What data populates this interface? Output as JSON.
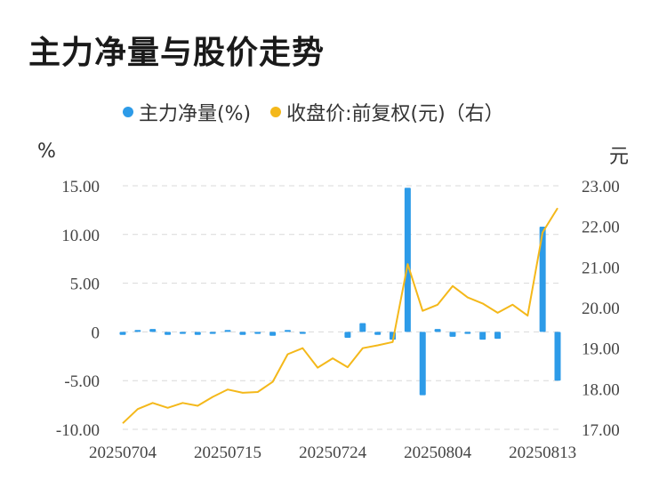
{
  "title": "主力净量与股价走势",
  "legend": {
    "net": "主力净量(%)",
    "price": "收盘价:前复权(元)（右）"
  },
  "units": {
    "left": "%",
    "right": "元"
  },
  "colors": {
    "bar": "#2d9be8",
    "line": "#f4b81a",
    "grid": "#d9d9d9"
  },
  "chart_data": {
    "type": "bar+line",
    "x": [
      "20250704",
      "20250707",
      "20250708",
      "20250709",
      "20250710",
      "20250711",
      "20250714",
      "20250715",
      "20250716",
      "20250717",
      "20250718",
      "20250721",
      "20250722",
      "20250723",
      "20250724",
      "20250725",
      "20250728",
      "20250729",
      "20250730",
      "20250731",
      "20250801",
      "20250804",
      "20250805",
      "20250806",
      "20250807",
      "20250808",
      "20250811",
      "20250812",
      "20250813",
      "20250814"
    ],
    "xticks": [
      "20250704",
      "20250715",
      "20250724",
      "20250804",
      "20250813"
    ],
    "series": [
      {
        "name": "主力净量(%)",
        "axis": "left",
        "type": "bar",
        "values": [
          -0.3,
          0.2,
          0.3,
          -0.3,
          -0.2,
          -0.3,
          -0.2,
          0.2,
          -0.3,
          -0.2,
          -0.4,
          0.2,
          -0.2,
          0,
          0,
          -0.6,
          0.9,
          -0.3,
          -0.8,
          14.8,
          -6.5,
          0.3,
          -0.5,
          -0.2,
          -0.8,
          -0.7,
          0,
          0,
          10.8,
          -5.0
        ]
      },
      {
        "name": "收盘价:前复权(元)（右）",
        "axis": "right",
        "type": "line",
        "values": [
          17.15,
          17.5,
          17.65,
          17.53,
          17.65,
          17.58,
          17.8,
          17.98,
          17.9,
          17.92,
          18.17,
          18.85,
          19.0,
          18.52,
          18.75,
          18.53,
          19.0,
          19.07,
          19.15,
          21.07,
          19.92,
          20.07,
          20.53,
          20.25,
          20.1,
          19.87,
          20.07,
          19.8,
          21.85,
          22.45
        ]
      }
    ],
    "ylim_left": [
      -10,
      15
    ],
    "yticks_left": [
      "15.00",
      "10.00",
      "5.00",
      "0",
      "-5.00",
      "-10.00"
    ],
    "ylim_right": [
      17,
      23
    ],
    "yticks_right": [
      "23.00",
      "22.00",
      "21.00",
      "20.00",
      "19.00",
      "18.00",
      "17.00"
    ]
  }
}
